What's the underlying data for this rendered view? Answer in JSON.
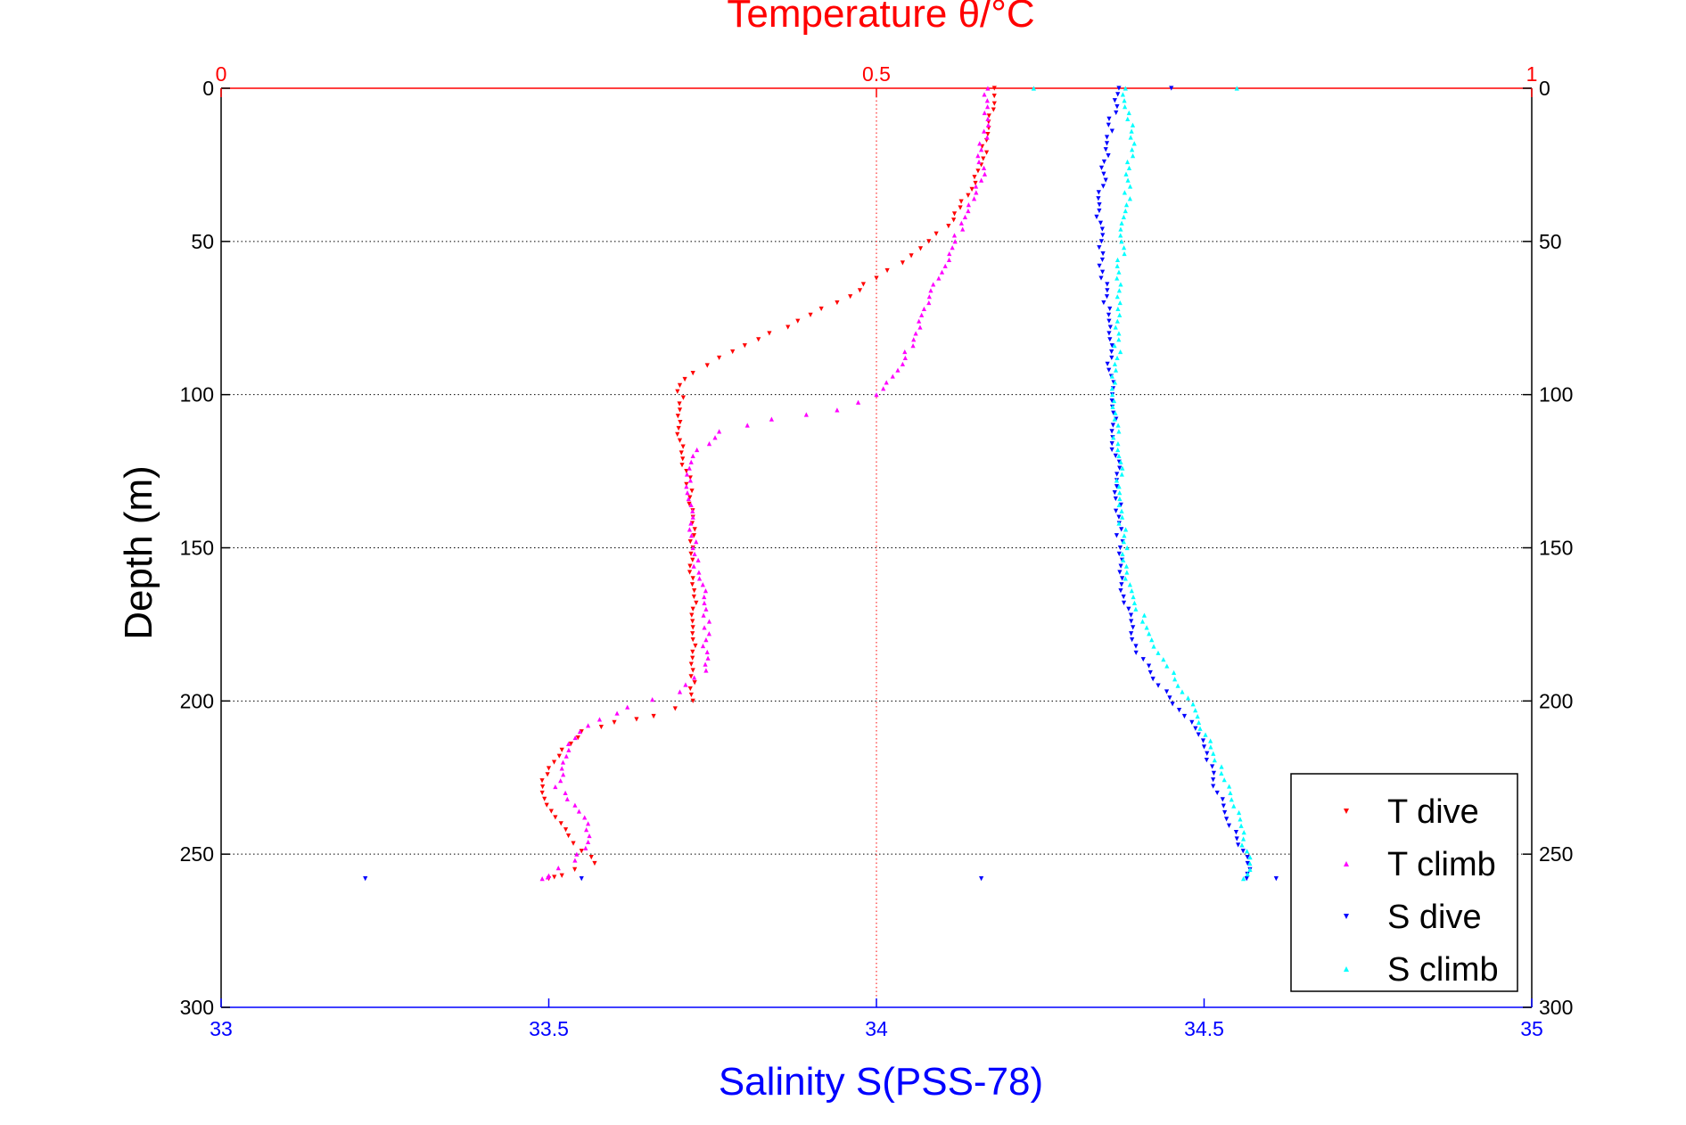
{
  "chart_data": {
    "type": "scatter",
    "title": "Temperature θ/°C",
    "xlabel": "Salinity S(PSS-78)",
    "ylabel": "Depth (m)",
    "x_temperature_axis": {
      "label": "Temperature θ/°C",
      "range": [
        0,
        1
      ],
      "ticks": [
        "0",
        "0.5",
        "1"
      ],
      "color": "#ff0000"
    },
    "x_salinity_axis": {
      "label": "Salinity S(PSS-78)",
      "range": [
        33,
        35
      ],
      "ticks": [
        "33",
        "33.5",
        "34",
        "34.5",
        "35"
      ],
      "color": "#0000ff"
    },
    "y_axis": {
      "label": "Depth (m)",
      "range": [
        0,
        300
      ],
      "reversed": true,
      "ticks": [
        "0",
        "50",
        "100",
        "150",
        "200",
        "250",
        "300"
      ]
    },
    "grid": true,
    "legend_position": "bottom-right",
    "series": [
      {
        "name": "T dive",
        "axis": "temperature",
        "color": "#ff0000",
        "marker": "triangle-down",
        "points": [
          [
            0.59,
            0
          ],
          [
            0.59,
            5
          ],
          [
            0.585,
            15
          ],
          [
            0.58,
            25
          ],
          [
            0.57,
            35
          ],
          [
            0.555,
            45
          ],
          [
            0.54,
            50
          ],
          [
            0.52,
            57
          ],
          [
            0.5,
            62
          ],
          [
            0.47,
            70
          ],
          [
            0.44,
            76
          ],
          [
            0.41,
            82
          ],
          [
            0.38,
            88
          ],
          [
            0.36,
            93
          ],
          [
            0.35,
            97
          ],
          [
            0.35,
            105
          ],
          [
            0.35,
            115
          ],
          [
            0.355,
            125
          ],
          [
            0.36,
            140
          ],
          [
            0.36,
            150
          ],
          [
            0.36,
            160
          ],
          [
            0.36,
            170
          ],
          [
            0.36,
            180
          ],
          [
            0.36,
            190
          ],
          [
            0.36,
            200
          ],
          [
            0.33,
            205
          ],
          [
            0.3,
            207
          ],
          [
            0.275,
            210
          ],
          [
            0.26,
            216
          ],
          [
            0.25,
            222
          ],
          [
            0.245,
            230
          ],
          [
            0.255,
            238
          ],
          [
            0.265,
            244
          ],
          [
            0.275,
            249
          ],
          [
            0.285,
            253
          ],
          [
            0.26,
            257
          ],
          [
            0.25,
            258
          ]
        ]
      },
      {
        "name": "T climb",
        "axis": "temperature",
        "color": "#ff00ff",
        "marker": "triangle-up",
        "points": [
          [
            0.585,
            0
          ],
          [
            0.585,
            10
          ],
          [
            0.58,
            20
          ],
          [
            0.58,
            30
          ],
          [
            0.57,
            40
          ],
          [
            0.56,
            50
          ],
          [
            0.55,
            60
          ],
          [
            0.54,
            70
          ],
          [
            0.53,
            80
          ],
          [
            0.52,
            90
          ],
          [
            0.5,
            100
          ],
          [
            0.47,
            105
          ],
          [
            0.42,
            108
          ],
          [
            0.38,
            112
          ],
          [
            0.36,
            120
          ],
          [
            0.355,
            130
          ],
          [
            0.36,
            140
          ],
          [
            0.36,
            150
          ],
          [
            0.365,
            160
          ],
          [
            0.37,
            170
          ],
          [
            0.37,
            180
          ],
          [
            0.37,
            190
          ],
          [
            0.35,
            197
          ],
          [
            0.31,
            202
          ],
          [
            0.28,
            208
          ],
          [
            0.265,
            214
          ],
          [
            0.26,
            222
          ],
          [
            0.255,
            228
          ],
          [
            0.27,
            234
          ],
          [
            0.28,
            240
          ],
          [
            0.28,
            246
          ],
          [
            0.27,
            252
          ],
          [
            0.25,
            257
          ],
          [
            0.245,
            258
          ]
        ]
      },
      {
        "name": "S dive",
        "axis": "salinity",
        "color": "#0000ff",
        "marker": "triangle-down",
        "points": [
          [
            34.37,
            0
          ],
          [
            34.35,
            20
          ],
          [
            34.34,
            40
          ],
          [
            34.345,
            60
          ],
          [
            34.355,
            80
          ],
          [
            34.36,
            100
          ],
          [
            34.365,
            120
          ],
          [
            34.37,
            140
          ],
          [
            34.375,
            160
          ],
          [
            34.39,
            180
          ],
          [
            34.43,
            195
          ],
          [
            34.47,
            205
          ],
          [
            34.5,
            215
          ],
          [
            34.52,
            230
          ],
          [
            34.55,
            245
          ],
          [
            34.57,
            255
          ],
          [
            34.565,
            258
          ],
          [
            33.22,
            258
          ],
          [
            33.55,
            258
          ],
          [
            34.16,
            258
          ],
          [
            34.61,
            258
          ],
          [
            34.45,
            0
          ]
        ]
      },
      {
        "name": "S climb",
        "axis": "salinity",
        "color": "#00ffff",
        "marker": "triangle-up",
        "points": [
          [
            34.38,
            0
          ],
          [
            34.39,
            20
          ],
          [
            34.38,
            40
          ],
          [
            34.37,
            60
          ],
          [
            34.37,
            80
          ],
          [
            34.36,
            100
          ],
          [
            34.37,
            120
          ],
          [
            34.375,
            140
          ],
          [
            34.38,
            160
          ],
          [
            34.42,
            180
          ],
          [
            34.46,
            195
          ],
          [
            34.49,
            205
          ],
          [
            34.51,
            215
          ],
          [
            34.54,
            230
          ],
          [
            34.56,
            245
          ],
          [
            34.57,
            255
          ],
          [
            34.56,
            258
          ],
          [
            34.24,
            0
          ],
          [
            34.55,
            0
          ]
        ]
      }
    ]
  }
}
